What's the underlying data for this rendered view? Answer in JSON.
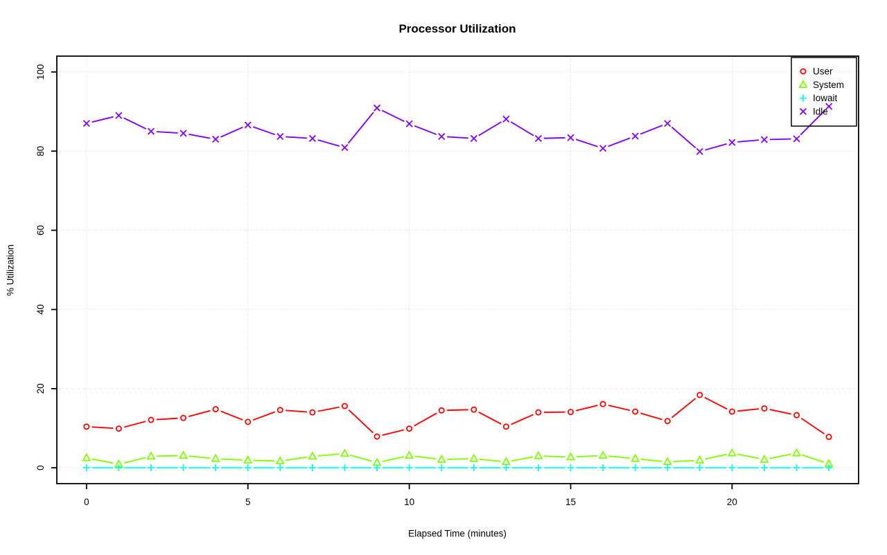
{
  "chart_data": {
    "type": "line",
    "title": "Processor Utilization",
    "xlabel": "Elapsed Time (minutes)",
    "ylabel": "% Utilization",
    "x": [
      0,
      1,
      2,
      3,
      4,
      5,
      6,
      7,
      8,
      9,
      10,
      11,
      12,
      13,
      14,
      15,
      16,
      17,
      18,
      19,
      20,
      21,
      22,
      23
    ],
    "xticks": [
      0,
      5,
      10,
      15,
      20
    ],
    "yticks": [
      0,
      20,
      40,
      60,
      80,
      100
    ],
    "xlim": [
      0,
      23
    ],
    "ylim": [
      0,
      100
    ],
    "grid": true,
    "grid_color": "#CFCFCF",
    "point_style": "open markers with gapped connecting lines (R type='b')",
    "legend_position": "topright",
    "series": [
      {
        "name": "User",
        "color": "#FF0000",
        "marker": "circle",
        "values": [
          10.4,
          9.9,
          12.1,
          12.6,
          14.8,
          11.6,
          14.6,
          14.0,
          15.6,
          7.9,
          9.9,
          14.5,
          14.7,
          10.4,
          14.0,
          14.1,
          16.1,
          14.2,
          11.8,
          18.4,
          14.2,
          15.0,
          13.3,
          7.8
        ]
      },
      {
        "name": "System",
        "color": "#80FF00",
        "marker": "triangle",
        "values": [
          2.5,
          0.9,
          2.9,
          3.1,
          2.3,
          1.9,
          1.7,
          2.9,
          3.6,
          1.3,
          3.1,
          2.1,
          2.3,
          1.5,
          3.0,
          2.7,
          3.1,
          2.3,
          1.5,
          1.9,
          3.7,
          2.1,
          3.7,
          1.0
        ]
      },
      {
        "name": "Iowait",
        "color": "#00FFFF",
        "marker": "plus",
        "values": [
          0,
          0,
          0,
          0,
          0,
          0,
          0,
          0,
          0,
          0,
          0,
          0,
          0,
          0,
          0,
          0,
          0,
          0,
          0,
          0,
          0,
          0,
          0,
          0
        ]
      },
      {
        "name": "Idle",
        "color": "#8000FF",
        "marker": "x",
        "values": [
          87.0,
          89.0,
          85.0,
          84.5,
          83.0,
          86.6,
          83.7,
          83.2,
          80.9,
          90.9,
          86.9,
          83.7,
          83.2,
          88.1,
          83.2,
          83.4,
          80.7,
          83.8,
          87.0,
          79.9,
          82.2,
          82.9,
          83.1,
          91.3
        ]
      }
    ]
  }
}
